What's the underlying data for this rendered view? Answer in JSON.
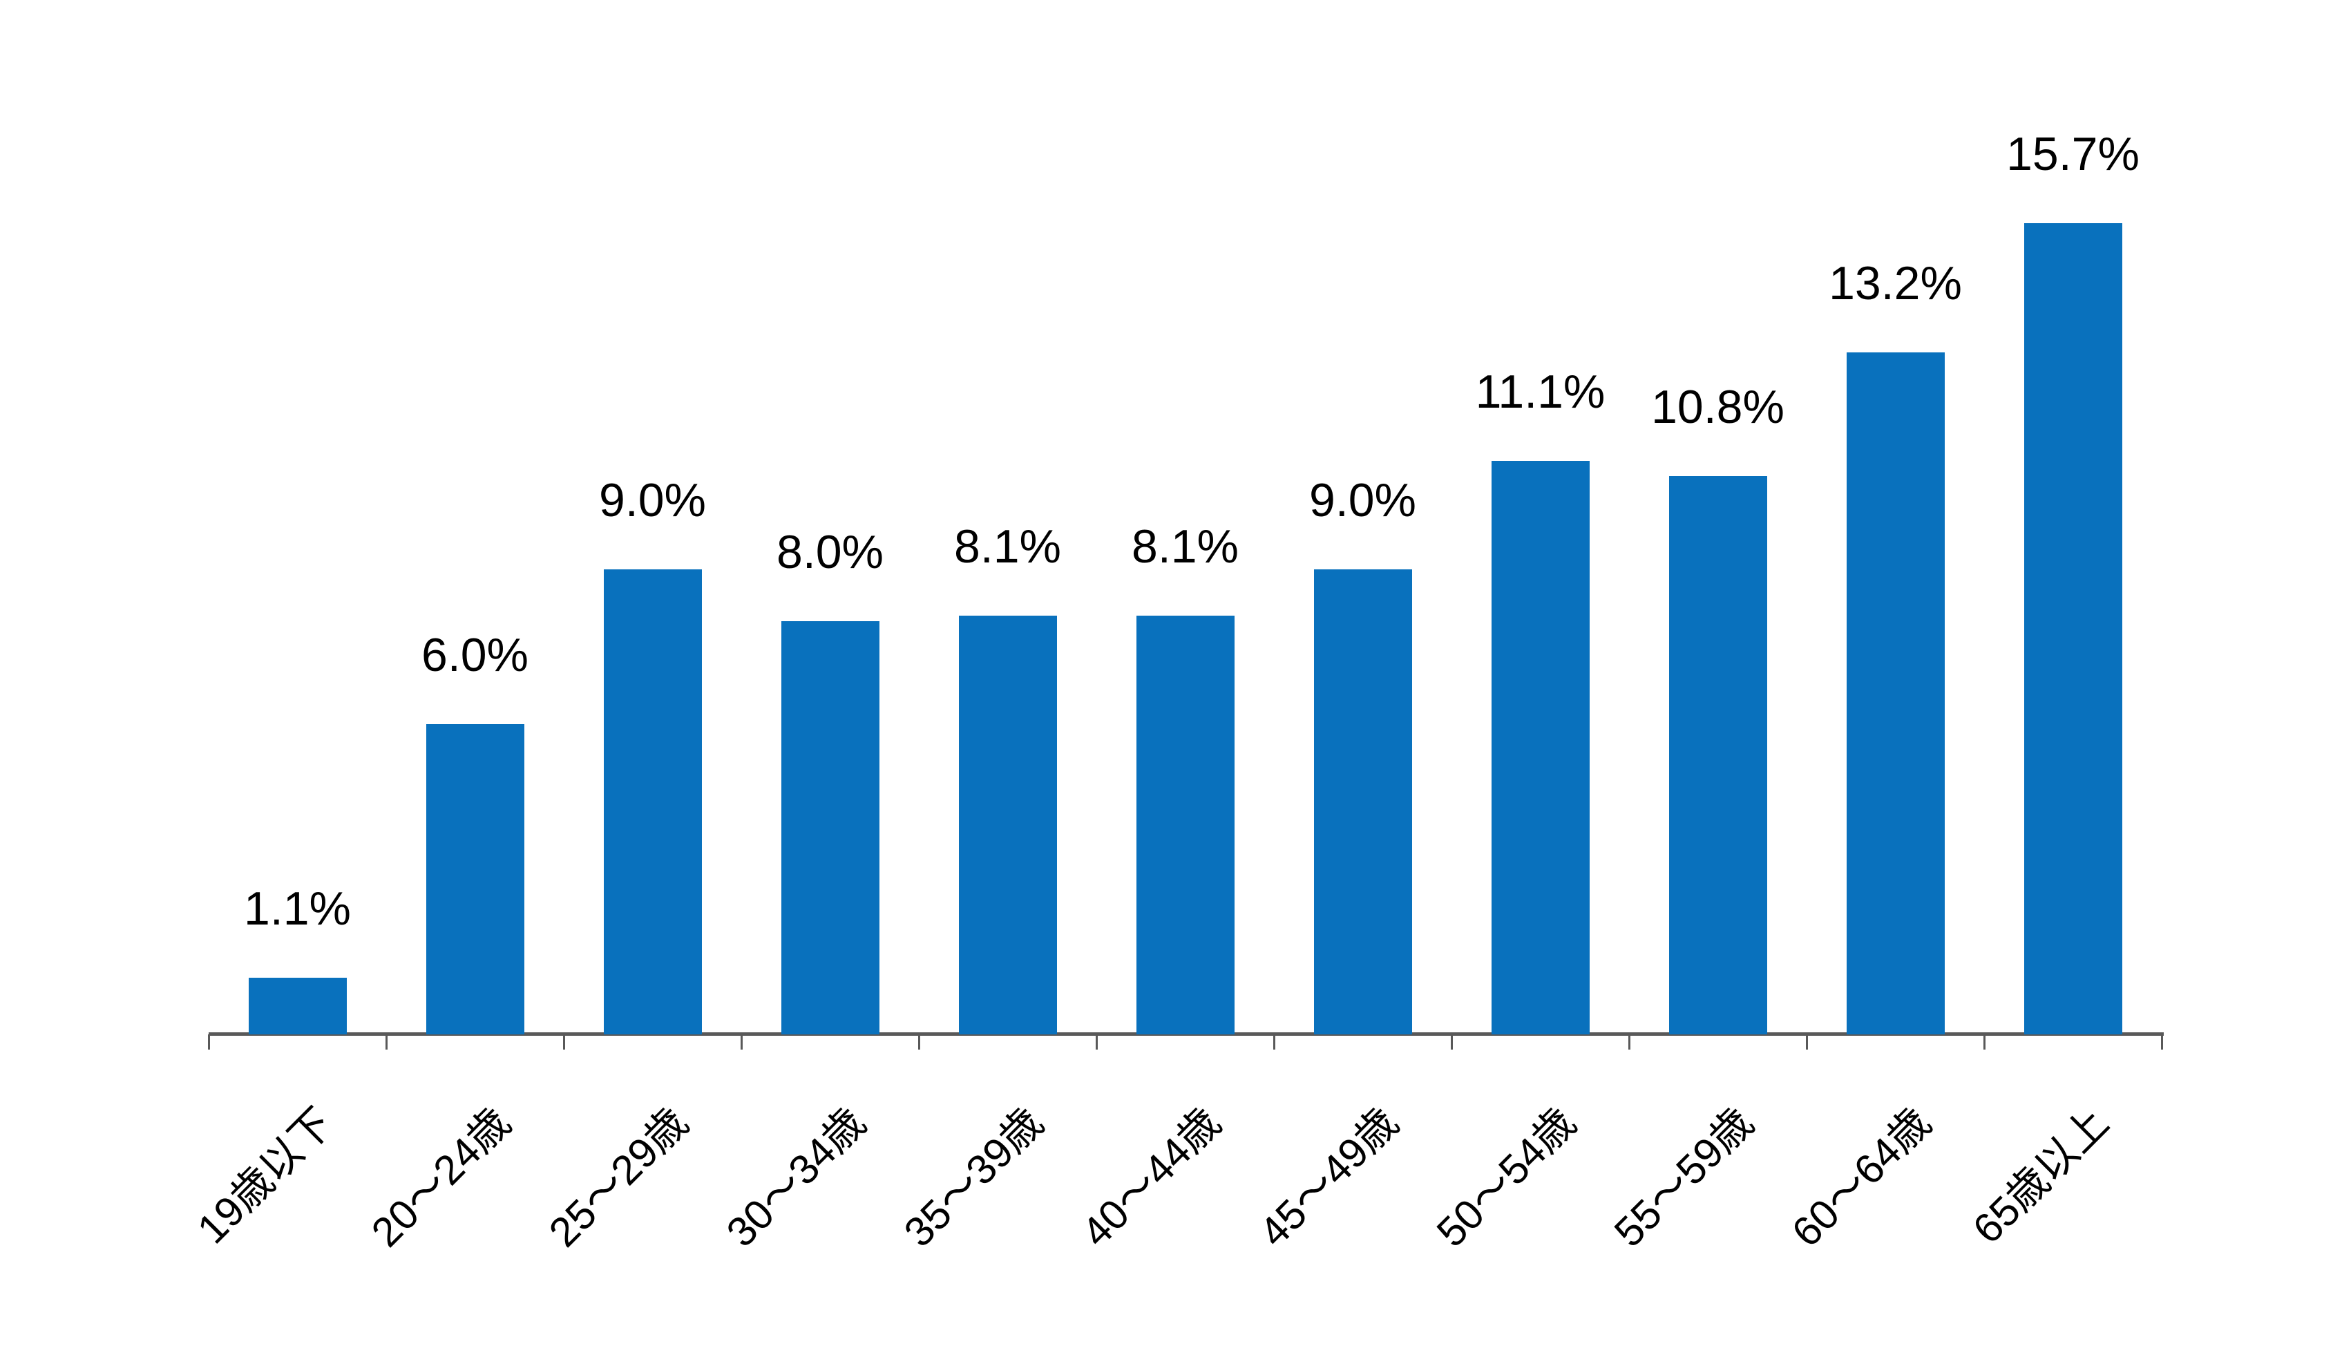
{
  "chart_data": {
    "type": "bar",
    "title": "",
    "xlabel": "",
    "ylabel": "",
    "categories": [
      "19歳以下",
      "20～24歳",
      "25～29歳",
      "30～34歳",
      "35～39歳",
      "40～44歳",
      "45～49歳",
      "50～54歳",
      "55～59歳",
      "60～64歳",
      "65歳以上"
    ],
    "values": [
      1.1,
      6.0,
      9.0,
      8.0,
      8.1,
      8.1,
      9.0,
      11.1,
      10.8,
      13.2,
      15.7
    ],
    "value_labels": [
      "1.1%",
      "6.0%",
      "9.0%",
      "8.0%",
      "8.1%",
      "8.1%",
      "9.0%",
      "11.1%",
      "10.8%",
      "13.2%",
      "15.7%"
    ],
    "ylim": [
      0,
      16
    ],
    "grid": false,
    "legend": "none",
    "y_axis_visible": false,
    "x_tick_label_rotation_deg": 45,
    "colors": {
      "bar": "#0971BD",
      "axis": "#595959",
      "value_label": "#000000",
      "category_label": "#000000",
      "background": "#FFFFFF"
    }
  }
}
